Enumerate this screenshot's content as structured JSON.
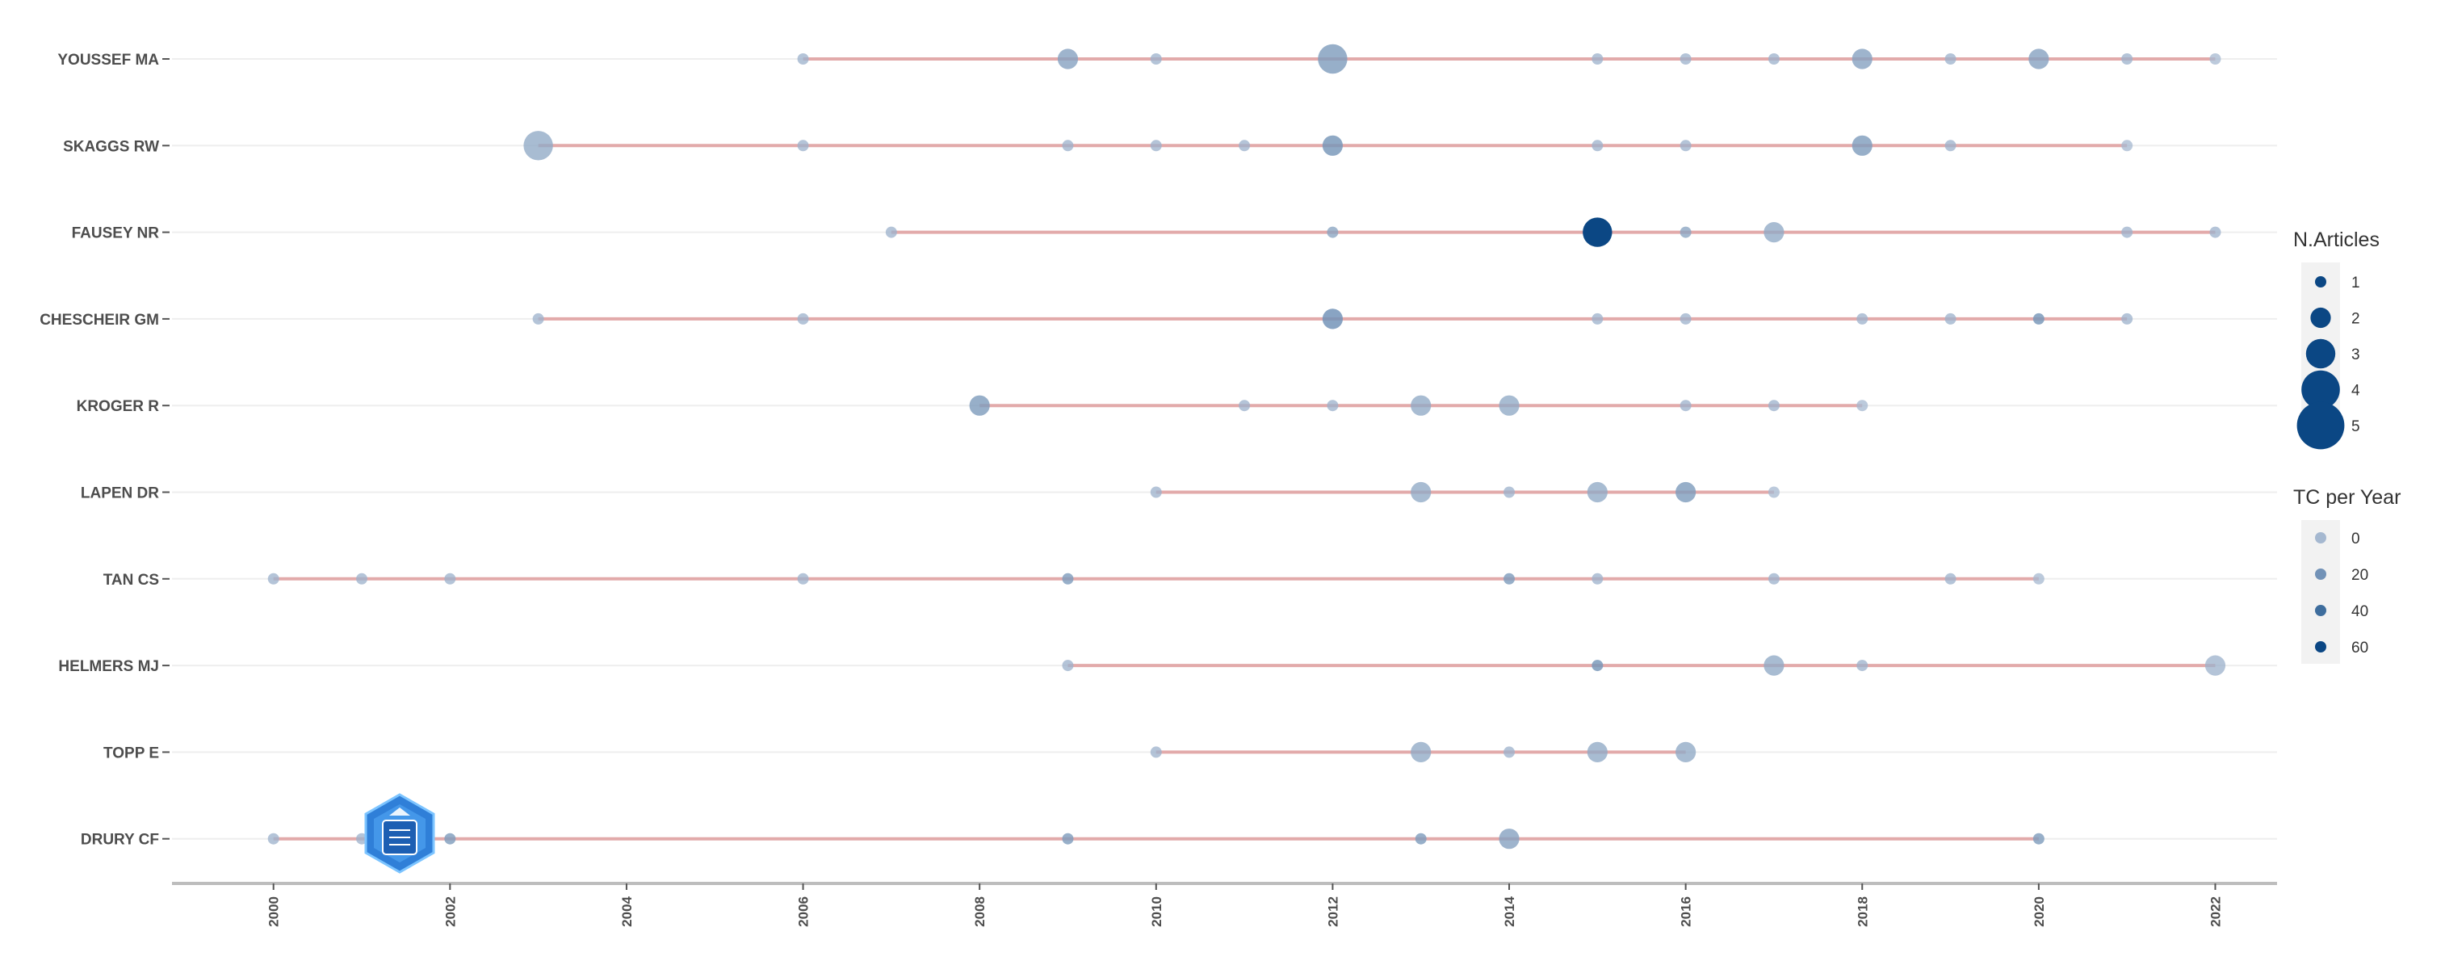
{
  "chart_data": {
    "type": "scatter",
    "xlabel": "",
    "ylabel": "",
    "x_ticks": [
      "2000",
      "2002",
      "2004",
      "2006",
      "2008",
      "2010",
      "2012",
      "2014",
      "2016",
      "2018",
      "2020",
      "2022"
    ],
    "xlim": [
      1998.85,
      2022.7
    ],
    "grid": true,
    "authors": [
      {
        "name": "YOUSSEF MA",
        "points": [
          [
            2006,
            1,
            3
          ],
          [
            2009,
            2,
            12
          ],
          [
            2010,
            1,
            3
          ],
          [
            2012,
            3,
            15
          ],
          [
            2015,
            1,
            3
          ],
          [
            2016,
            1,
            3
          ],
          [
            2017,
            1,
            3
          ],
          [
            2018,
            2,
            12
          ],
          [
            2019,
            1,
            3
          ],
          [
            2020,
            2,
            12
          ],
          [
            2021,
            1,
            3
          ],
          [
            2022,
            1,
            0
          ]
        ]
      },
      {
        "name": "SKAGGS RW",
        "points": [
          [
            2003,
            3,
            8
          ],
          [
            2006,
            1,
            3
          ],
          [
            2009,
            1,
            3
          ],
          [
            2010,
            1,
            3
          ],
          [
            2011,
            1,
            3
          ],
          [
            2012,
            2,
            18
          ],
          [
            2015,
            1,
            3
          ],
          [
            2016,
            1,
            3
          ],
          [
            2018,
            2,
            15
          ],
          [
            2019,
            1,
            3
          ],
          [
            2021,
            1,
            0
          ]
        ]
      },
      {
        "name": "FAUSEY NR",
        "points": [
          [
            2007,
            1,
            3
          ],
          [
            2012,
            1,
            10
          ],
          [
            2015,
            3,
            60
          ],
          [
            2016,
            1,
            10
          ],
          [
            2017,
            2,
            8
          ],
          [
            2021,
            1,
            3
          ],
          [
            2022,
            1,
            3
          ]
        ]
      },
      {
        "name": "CHESCHEIR GM",
        "points": [
          [
            2003,
            1,
            3
          ],
          [
            2006,
            1,
            3
          ],
          [
            2012,
            2,
            20
          ],
          [
            2015,
            1,
            3
          ],
          [
            2016,
            1,
            3
          ],
          [
            2018,
            1,
            3
          ],
          [
            2019,
            1,
            3
          ],
          [
            2020,
            1,
            18
          ],
          [
            2021,
            1,
            3
          ]
        ]
      },
      {
        "name": "KROGER R",
        "points": [
          [
            2008,
            2,
            15
          ],
          [
            2011,
            1,
            3
          ],
          [
            2012,
            1,
            3
          ],
          [
            2013,
            2,
            8
          ],
          [
            2014,
            2,
            8
          ],
          [
            2016,
            1,
            3
          ],
          [
            2017,
            1,
            3
          ],
          [
            2018,
            1,
            0
          ]
        ]
      },
      {
        "name": "LAPEN DR",
        "points": [
          [
            2010,
            1,
            3
          ],
          [
            2013,
            2,
            8
          ],
          [
            2014,
            1,
            3
          ],
          [
            2015,
            2,
            8
          ],
          [
            2016,
            2,
            15
          ],
          [
            2017,
            1,
            0
          ]
        ]
      },
      {
        "name": "TAN CS",
        "points": [
          [
            2000,
            1,
            3
          ],
          [
            2001,
            1,
            3
          ],
          [
            2002,
            1,
            3
          ],
          [
            2006,
            1,
            3
          ],
          [
            2009,
            1,
            15
          ],
          [
            2014,
            1,
            15
          ],
          [
            2015,
            1,
            3
          ],
          [
            2017,
            1,
            3
          ],
          [
            2019,
            1,
            3
          ],
          [
            2020,
            1,
            0
          ]
        ]
      },
      {
        "name": "HELMERS MJ",
        "points": [
          [
            2009,
            1,
            3
          ],
          [
            2015,
            1,
            18
          ],
          [
            2017,
            2,
            8
          ],
          [
            2018,
            1,
            3
          ],
          [
            2022,
            2,
            3
          ]
        ]
      },
      {
        "name": "TOPP E",
        "points": [
          [
            2010,
            1,
            3
          ],
          [
            2013,
            2,
            8
          ],
          [
            2014,
            1,
            3
          ],
          [
            2015,
            2,
            8
          ],
          [
            2016,
            2,
            8
          ]
        ]
      },
      {
        "name": "DRURY CF",
        "points": [
          [
            2000,
            1,
            3
          ],
          [
            2001,
            1,
            3
          ],
          [
            2002,
            1,
            15
          ],
          [
            2009,
            1,
            15
          ],
          [
            2013,
            1,
            15
          ],
          [
            2014,
            2,
            12
          ],
          [
            2020,
            1,
            15
          ]
        ]
      }
    ],
    "point_fields": [
      "year",
      "n_articles",
      "tc_per_year"
    ],
    "legend_size": {
      "title": "N.Articles",
      "values": [
        1,
        2,
        3,
        4,
        5
      ]
    },
    "legend_color": {
      "title": "TC per Year",
      "values": [
        0,
        20,
        40,
        60
      ]
    },
    "legend_placement": "right",
    "colors": {
      "line": "#e2aaaa",
      "point_low": "#a5b8d0",
      "point_high": "#0b4784",
      "grid": "#eeeeee",
      "axis": "#bdbdbd"
    }
  }
}
